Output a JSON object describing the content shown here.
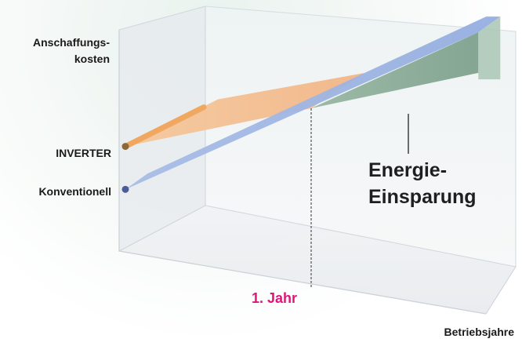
{
  "chart_data": {
    "type": "line",
    "ylabel_lines": [
      "Anschaffungs-",
      "kosten"
    ],
    "xlabel": "Betriebsjahre",
    "x": [
      0,
      1,
      1.9
    ],
    "series": [
      {
        "name": "INVERTER",
        "values": [
          8.0,
          10.0,
          11.9
        ],
        "color": "#f0a860"
      },
      {
        "name": "Konventionell",
        "values": [
          4.3,
          10.0,
          15.4
        ],
        "color": "#8fa8d8"
      }
    ],
    "savings_color": "#7fa890",
    "markers": [
      {
        "x": 1,
        "label": "1. Jahr",
        "color": "#e0157a"
      }
    ],
    "annotations": [
      {
        "lines": [
          "Energie-",
          "Einsparung"
        ]
      }
    ],
    "xlim": [
      0,
      1.9
    ],
    "ylim": [
      0,
      16
    ],
    "grid": false
  }
}
